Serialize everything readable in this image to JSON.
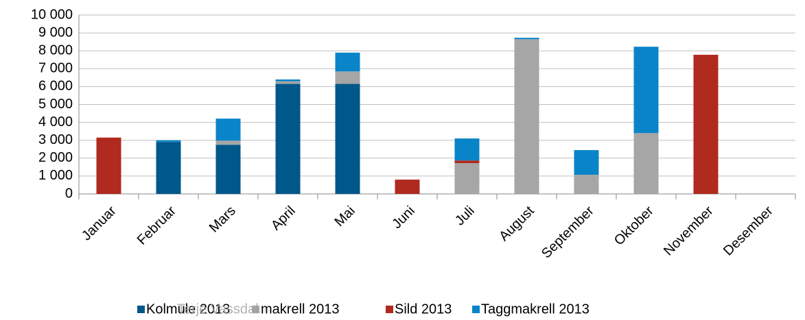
{
  "chart_data": {
    "type": "bar",
    "stacked": true,
    "categories": [
      "Januar",
      "Februar",
      "Mars",
      "April",
      "Mai",
      "Juni",
      "Juli",
      "August",
      "September",
      "Oktober",
      "November",
      "Desember"
    ],
    "series": [
      {
        "name": "Kolmule 2013",
        "color": "#00578a",
        "values": [
          0,
          2900,
          2750,
          6150,
          6150,
          0,
          0,
          0,
          0,
          0,
          0,
          0
        ]
      },
      {
        "name": "makrell 2013",
        "color": "#a6a6a6",
        "values": [
          0,
          0,
          230,
          150,
          700,
          0,
          1720,
          8650,
          1070,
          3400,
          0,
          0
        ]
      },
      {
        "name": "Sild 2013",
        "color": "#b02a1f",
        "values": [
          3150,
          0,
          0,
          0,
          0,
          800,
          150,
          0,
          0,
          0,
          7780,
          0
        ]
      },
      {
        "name": "Taggmakrell 2013",
        "color": "#0a84c8",
        "values": [
          0,
          100,
          1230,
          100,
          1050,
          0,
          1230,
          80,
          1380,
          4830,
          0,
          0
        ]
      }
    ],
    "ylim": [
      0,
      10000
    ],
    "yticks": [
      0,
      {
        "value": 1000,
        "label": "1 000"
      },
      {
        "value": 2000,
        "label": "2 000"
      },
      {
        "value": 3000,
        "label": "3 000"
      },
      {
        "value": 4000,
        "label": "4 000"
      },
      {
        "value": 5000,
        "label": "5 000"
      },
      {
        "value": 6000,
        "label": "6 000"
      },
      {
        "value": 7000,
        "label": "7 000"
      },
      {
        "value": 8000,
        "label": "8 000"
      },
      {
        "value": 9000,
        "label": "9 000"
      },
      {
        "value": 10000,
        "label": "10 000"
      }
    ],
    "grid": true,
    "legend": "bottom",
    "watermark": "Terje Vassdal"
  }
}
